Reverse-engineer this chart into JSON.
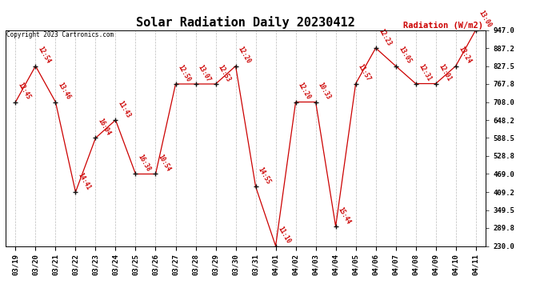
{
  "title": "Solar Radiation Daily 20230412",
  "copyright": "Copyright 2023 Cartronics.com",
  "ylabel": "Radiation (W/m2)",
  "background_color": "#ffffff",
  "line_color": "#cc0000",
  "marker_color": "#111111",
  "dates": [
    "03/19",
    "03/20",
    "03/21",
    "03/22",
    "03/23",
    "03/24",
    "03/25",
    "03/26",
    "03/27",
    "03/28",
    "03/29",
    "03/30",
    "03/31",
    "04/01",
    "04/02",
    "04/03",
    "04/04",
    "04/05",
    "04/06",
    "04/07",
    "04/08",
    "04/09",
    "04/10",
    "04/11"
  ],
  "values": [
    708.0,
    827.5,
    708.0,
    409.2,
    588.5,
    648.2,
    469.0,
    469.0,
    767.8,
    767.8,
    767.8,
    827.5,
    427.0,
    230.0,
    708.0,
    708.0,
    295.0,
    769.0,
    887.2,
    827.5,
    769.0,
    769.0,
    827.5,
    947.0
  ],
  "labels": [
    "12:45",
    "12:54",
    "13:46",
    "14:41",
    "16:04",
    "11:43",
    "16:38",
    "10:54",
    "12:50",
    "13:07",
    "12:53",
    "12:20",
    "14:55",
    "11:10",
    "12:20",
    "10:33",
    "15:44",
    "11:57",
    "12:23",
    "13:05",
    "12:31",
    "12:01",
    "13:24",
    "13:00"
  ],
  "ylim_min": 230.0,
  "ylim_max": 947.0,
  "yticks": [
    230.0,
    289.8,
    349.5,
    409.2,
    469.0,
    528.8,
    588.5,
    648.2,
    708.0,
    767.8,
    827.5,
    887.2,
    947.0
  ],
  "title_fontsize": 11,
  "label_fontsize": 5.5,
  "tick_fontsize": 6.5,
  "ylabel_fontsize": 7.5,
  "copyright_fontsize": 5.5
}
